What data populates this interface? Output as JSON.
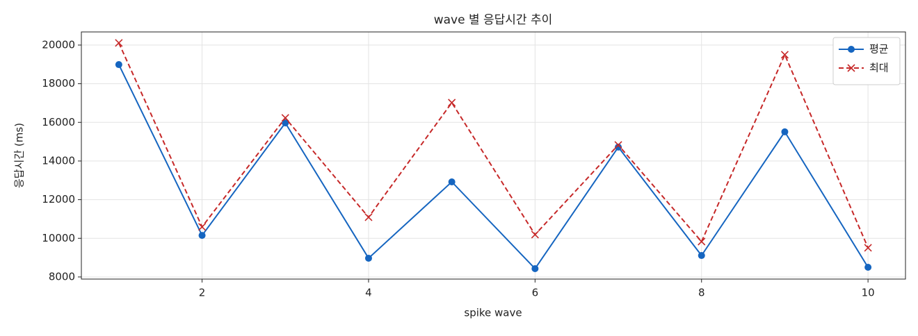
{
  "chart_data": {
    "type": "line",
    "title": "wave 별 응답시간 추이",
    "xlabel": "spike wave",
    "ylabel": "응답시간 (ms)",
    "x": [
      1,
      2,
      3,
      4,
      5,
      6,
      7,
      8,
      9,
      10
    ],
    "series": [
      {
        "name": "평균",
        "color": "#1565c0",
        "linestyle": "solid",
        "marker": "circle",
        "values": [
          18990,
          10150,
          15970,
          8970,
          12920,
          8430,
          14720,
          9110,
          15510,
          8500
        ]
      },
      {
        "name": "최대",
        "color": "#c62828",
        "linestyle": "dashed",
        "marker": "x",
        "values": [
          20110,
          10590,
          16230,
          11090,
          17020,
          10190,
          14830,
          9830,
          19500,
          9510
        ]
      }
    ],
    "xlim": [
      0.55,
      10.45
    ],
    "xticks": [
      2,
      4,
      6,
      8,
      10
    ],
    "ylim": [
      7890,
      20680
    ],
    "yticks": [
      8000,
      10000,
      12000,
      14000,
      16000,
      18000,
      20000
    ],
    "grid": true,
    "legend": "upper right"
  }
}
